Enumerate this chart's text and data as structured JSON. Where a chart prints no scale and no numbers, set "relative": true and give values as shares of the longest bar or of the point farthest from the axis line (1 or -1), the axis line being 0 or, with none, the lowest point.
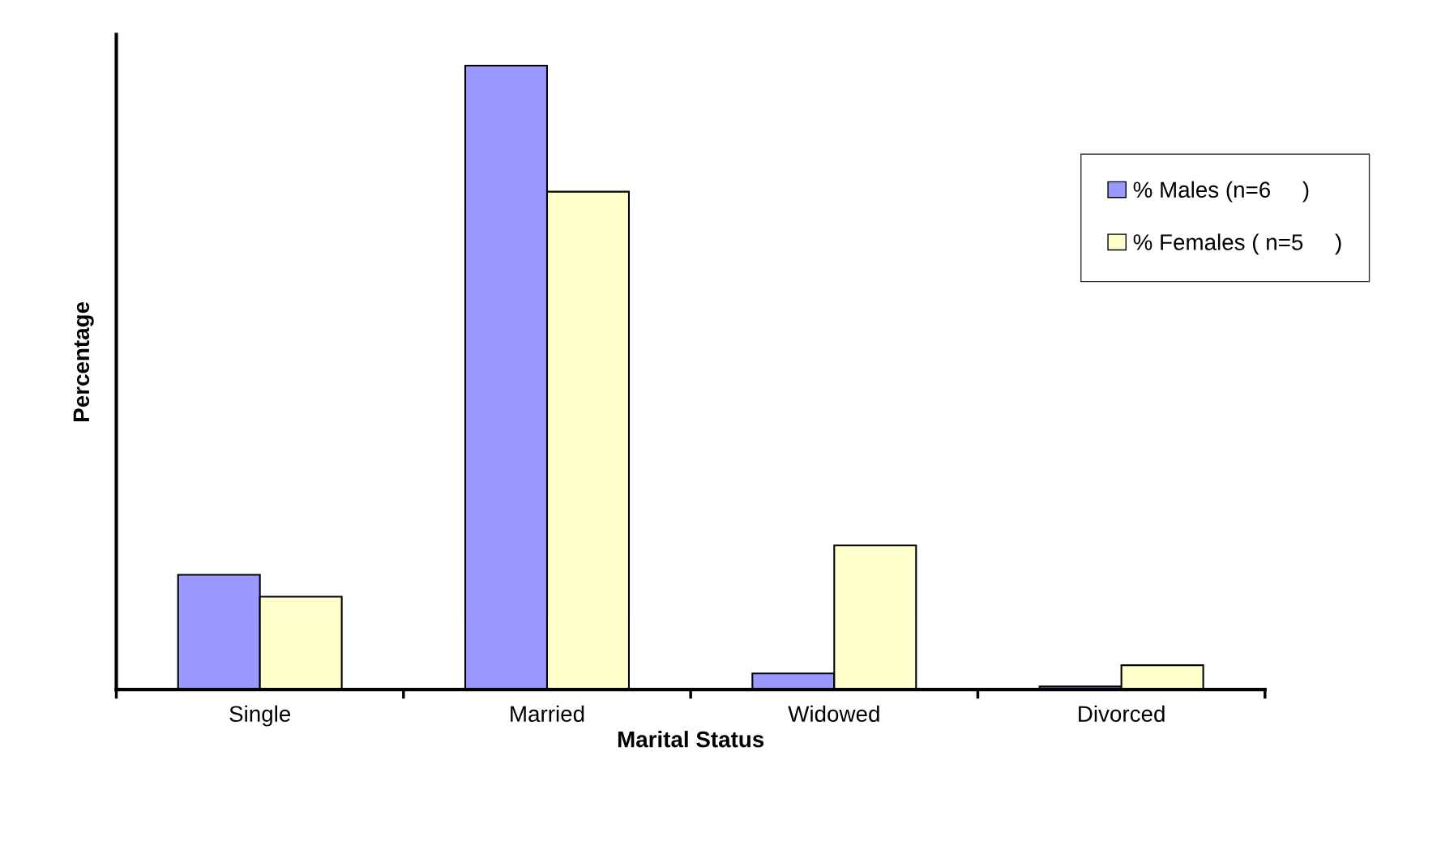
{
  "chart_data": {
    "type": "bar",
    "relative": true,
    "xlabel": "Marital Status",
    "ylabel": "Percentage",
    "categories": [
      "Single",
      "Married",
      "Widowed",
      "Divorced"
    ],
    "series": [
      {
        "name": "% Males (n=6     )",
        "color": "#9999ff",
        "values": [
          0.184,
          1,
          0.026,
          0.005
        ]
      },
      {
        "name": "% Females ( n=5     )",
        "color": "#ffffcc",
        "values": [
          0.149,
          0.798,
          0.231,
          0.039
        ]
      }
    ],
    "legend": "right",
    "grid": false
  }
}
